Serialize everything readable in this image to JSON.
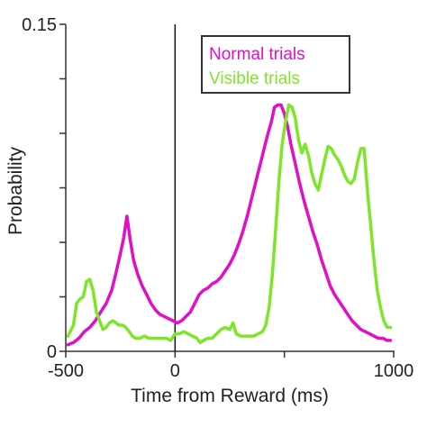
{
  "chart_data": {
    "type": "line",
    "xlabel": "Time from Reward (ms)",
    "ylabel": "Probability",
    "xlim": [
      -500,
      1000
    ],
    "ylim": [
      0,
      0.15
    ],
    "x_tick_labels": [
      "-500",
      "0",
      "1000"
    ],
    "x_ticks": [
      -500,
      0,
      500,
      1000
    ],
    "y_tick_labels": [
      "0",
      "0.15"
    ],
    "y_ticks": [
      0,
      0.025,
      0.05,
      0.075,
      0.1,
      0.125,
      0.15
    ],
    "vertical_marker_x": 0,
    "legend_position": "top-right",
    "grid": false,
    "series": [
      {
        "name": "Normal trials",
        "color": "#e010c8",
        "points": [
          [
            -490,
            0.003
          ],
          [
            -465,
            0.004
          ],
          [
            -440,
            0.006
          ],
          [
            -415,
            0.009
          ],
          [
            -390,
            0.011
          ],
          [
            -365,
            0.014
          ],
          [
            -340,
            0.018
          ],
          [
            -315,
            0.022
          ],
          [
            -290,
            0.028
          ],
          [
            -270,
            0.036
          ],
          [
            -250,
            0.045
          ],
          [
            -235,
            0.052
          ],
          [
            -220,
            0.062
          ],
          [
            -205,
            0.051
          ],
          [
            -190,
            0.042
          ],
          [
            -170,
            0.035
          ],
          [
            -150,
            0.03
          ],
          [
            -130,
            0.026
          ],
          [
            -110,
            0.022
          ],
          [
            -90,
            0.019
          ],
          [
            -70,
            0.017
          ],
          [
            -50,
            0.016
          ],
          [
            -30,
            0.015
          ],
          [
            -10,
            0.014
          ],
          [
            10,
            0.013
          ],
          [
            30,
            0.014
          ],
          [
            50,
            0.016
          ],
          [
            70,
            0.018
          ],
          [
            90,
            0.022
          ],
          [
            110,
            0.026
          ],
          [
            130,
            0.028
          ],
          [
            150,
            0.029
          ],
          [
            170,
            0.031
          ],
          [
            190,
            0.032
          ],
          [
            210,
            0.034
          ],
          [
            230,
            0.037
          ],
          [
            250,
            0.04
          ],
          [
            270,
            0.044
          ],
          [
            290,
            0.049
          ],
          [
            310,
            0.055
          ],
          [
            330,
            0.062
          ],
          [
            350,
            0.07
          ],
          [
            370,
            0.078
          ],
          [
            390,
            0.086
          ],
          [
            410,
            0.094
          ],
          [
            425,
            0.1
          ],
          [
            440,
            0.105
          ],
          [
            455,
            0.112
          ],
          [
            470,
            0.113
          ],
          [
            485,
            0.113
          ],
          [
            500,
            0.109
          ],
          [
            515,
            0.103
          ],
          [
            530,
            0.095
          ],
          [
            550,
            0.086
          ],
          [
            570,
            0.077
          ],
          [
            590,
            0.069
          ],
          [
            610,
            0.062
          ],
          [
            630,
            0.055
          ],
          [
            650,
            0.049
          ],
          [
            670,
            0.042
          ],
          [
            690,
            0.036
          ],
          [
            710,
            0.03
          ],
          [
            730,
            0.026
          ],
          [
            750,
            0.023
          ],
          [
            770,
            0.02
          ],
          [
            790,
            0.017
          ],
          [
            810,
            0.014
          ],
          [
            830,
            0.012
          ],
          [
            850,
            0.01
          ],
          [
            870,
            0.009
          ],
          [
            890,
            0.008
          ],
          [
            910,
            0.007
          ],
          [
            930,
            0.006
          ],
          [
            950,
            0.006
          ],
          [
            970,
            0.005
          ],
          [
            985,
            0.005
          ]
        ]
      },
      {
        "name": "Visible trials",
        "color": "#7ee629",
        "points": [
          [
            -490,
            0.007
          ],
          [
            -465,
            0.012
          ],
          [
            -450,
            0.022
          ],
          [
            -435,
            0.024
          ],
          [
            -420,
            0.025
          ],
          [
            -405,
            0.032
          ],
          [
            -390,
            0.033
          ],
          [
            -375,
            0.028
          ],
          [
            -360,
            0.018
          ],
          [
            -345,
            0.014
          ],
          [
            -330,
            0.01
          ],
          [
            -315,
            0.011
          ],
          [
            -300,
            0.013
          ],
          [
            -285,
            0.014
          ],
          [
            -270,
            0.013
          ],
          [
            -255,
            0.012
          ],
          [
            -240,
            0.012
          ],
          [
            -225,
            0.011
          ],
          [
            -210,
            0.009
          ],
          [
            -195,
            0.007
          ],
          [
            -180,
            0.006
          ],
          [
            -160,
            0.006
          ],
          [
            -140,
            0.007
          ],
          [
            -120,
            0.006
          ],
          [
            -100,
            0.006
          ],
          [
            -80,
            0.006
          ],
          [
            -60,
            0.006
          ],
          [
            -40,
            0.006
          ],
          [
            -20,
            0.005
          ],
          [
            0,
            0.008
          ],
          [
            20,
            0.008
          ],
          [
            40,
            0.009
          ],
          [
            60,
            0.008
          ],
          [
            80,
            0.007
          ],
          [
            100,
            0.006
          ],
          [
            115,
            0.004
          ],
          [
            130,
            0.005
          ],
          [
            150,
            0.006
          ],
          [
            170,
            0.006
          ],
          [
            190,
            0.008
          ],
          [
            210,
            0.01
          ],
          [
            230,
            0.011
          ],
          [
            250,
            0.01
          ],
          [
            265,
            0.013
          ],
          [
            280,
            0.008
          ],
          [
            300,
            0.007
          ],
          [
            320,
            0.007
          ],
          [
            340,
            0.007
          ],
          [
            360,
            0.007
          ],
          [
            380,
            0.008
          ],
          [
            400,
            0.009
          ],
          [
            415,
            0.012
          ],
          [
            430,
            0.02
          ],
          [
            445,
            0.035
          ],
          [
            460,
            0.056
          ],
          [
            475,
            0.078
          ],
          [
            490,
            0.095
          ],
          [
            505,
            0.105
          ],
          [
            520,
            0.113
          ],
          [
            535,
            0.112
          ],
          [
            550,
            0.107
          ],
          [
            565,
            0.097
          ],
          [
            580,
            0.091
          ],
          [
            595,
            0.095
          ],
          [
            610,
            0.09
          ],
          [
            625,
            0.082
          ],
          [
            640,
            0.077
          ],
          [
            655,
            0.074
          ],
          [
            670,
            0.081
          ],
          [
            685,
            0.088
          ],
          [
            700,
            0.094
          ],
          [
            715,
            0.093
          ],
          [
            730,
            0.09
          ],
          [
            745,
            0.088
          ],
          [
            760,
            0.085
          ],
          [
            775,
            0.081
          ],
          [
            790,
            0.078
          ],
          [
            805,
            0.077
          ],
          [
            820,
            0.079
          ],
          [
            835,
            0.087
          ],
          [
            850,
            0.093
          ],
          [
            865,
            0.093
          ],
          [
            875,
            0.08
          ],
          [
            885,
            0.068
          ],
          [
            895,
            0.058
          ],
          [
            905,
            0.047
          ],
          [
            915,
            0.037
          ],
          [
            925,
            0.028
          ],
          [
            940,
            0.02
          ],
          [
            955,
            0.014
          ],
          [
            970,
            0.011
          ],
          [
            985,
            0.011
          ]
        ]
      }
    ]
  }
}
